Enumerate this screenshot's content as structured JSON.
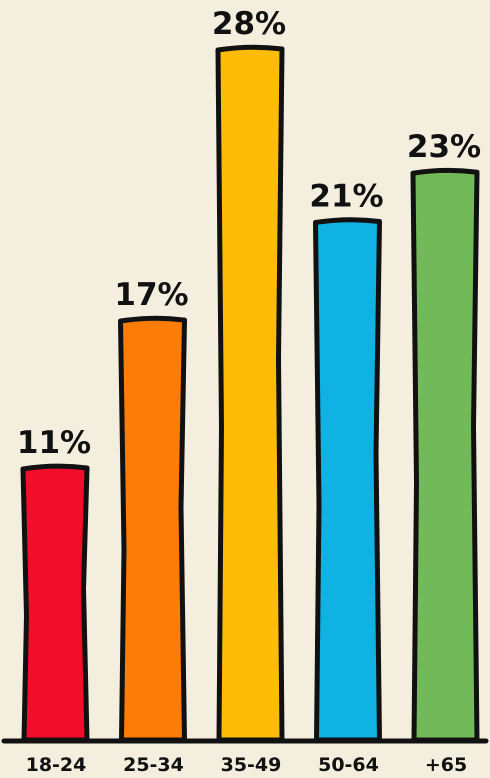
{
  "chart_data": {
    "type": "bar",
    "title": "",
    "xlabel": "",
    "ylabel": "",
    "categories": [
      "18-24",
      "25-34",
      "35-49",
      "50-64",
      "+65"
    ],
    "values": [
      11,
      17,
      28,
      21,
      23
    ],
    "value_labels": [
      "11%",
      "17%",
      "28%",
      "21%",
      "23%"
    ],
    "colors": [
      "#f20d2a",
      "#fb7d08",
      "#fdbc07",
      "#10b2e4",
      "#72b95a"
    ],
    "ylim": [
      0,
      28
    ],
    "grid": false,
    "legend": "none"
  }
}
